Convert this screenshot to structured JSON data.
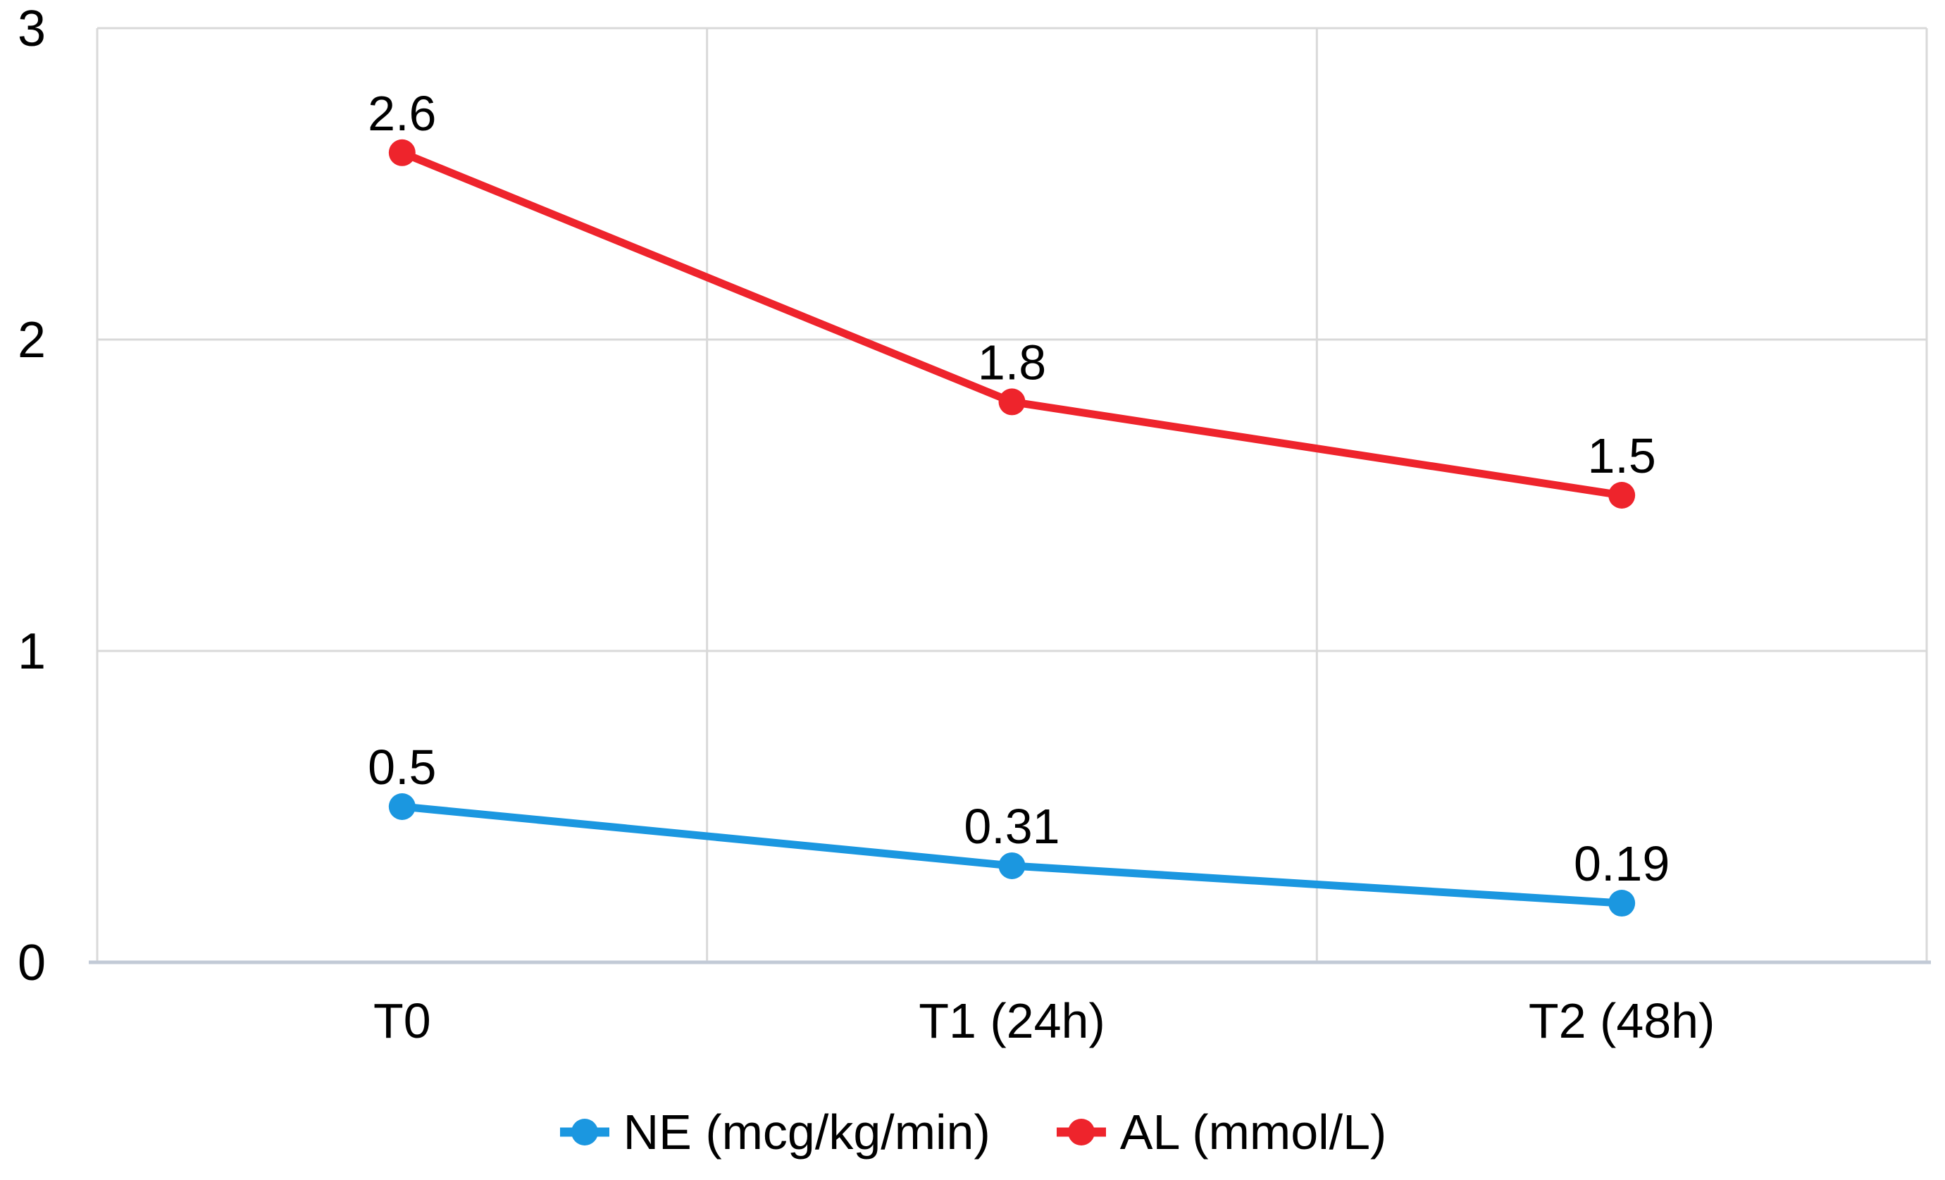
{
  "chart_data": {
    "type": "line",
    "title": "",
    "xlabel": "",
    "ylabel": "",
    "categories": [
      "T0",
      "T1 (24h)",
      "T2 (48h)"
    ],
    "series": [
      {
        "name": "NE (mcg/kg/min)",
        "color": "#1B97E0",
        "values": [
          0.5,
          0.31,
          0.19
        ],
        "point_labels": [
          "0.5",
          "0.31",
          "0.19"
        ]
      },
      {
        "name": "AL (mmol/L)",
        "color": "#EE242C",
        "values": [
          2.6,
          1.8,
          1.5
        ],
        "point_labels": [
          "2.6",
          "1.8",
          "1.5"
        ]
      }
    ],
    "ylim": [
      0,
      3
    ],
    "yticks": [
      0,
      1,
      2,
      3
    ],
    "ytick_labels": [
      "0",
      "1",
      "2",
      "3"
    ],
    "grid": true,
    "legend_position": "bottom",
    "colors": {
      "gridline": "#D9D9D9",
      "axis_line": "#C2CAD6",
      "label_text": "#000000",
      "background": "#FFFFFF"
    }
  }
}
